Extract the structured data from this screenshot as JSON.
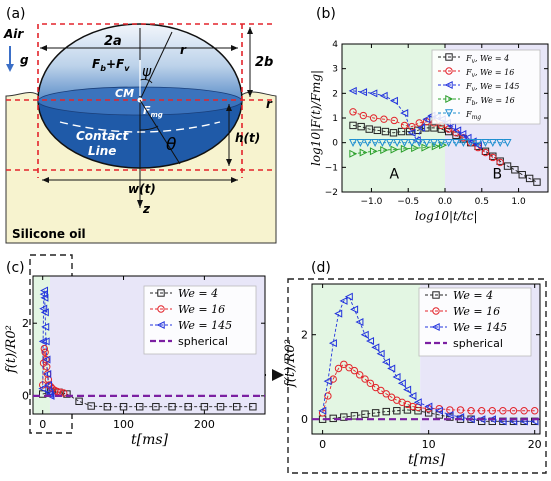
{
  "panel_labels": {
    "a": "(a)",
    "b": "(b)",
    "c": "(c)",
    "d": "(d)"
  },
  "schematic": {
    "air": "Air",
    "g": "g",
    "two_a": "2a",
    "two_b": "2b",
    "psi": "ψ",
    "r_upper": "r",
    "r_side": "r",
    "forces_up": "F",
    "forces_up_sub1": "b",
    "forces_up_plus": "+F",
    "forces_up_sub2": "v",
    "cm": "CM",
    "f_mg": "F",
    "f_mg_sub": "mg",
    "contact": "Contact",
    "line": "Line",
    "theta": "θ",
    "h_t": "h(t)",
    "w_t": "w(t)",
    "z": "z",
    "silicone_oil": "Silicone oil",
    "colors": {
      "oil": "#f7f3cf",
      "cap_top": "#e4eef8",
      "cap_mid": "#7fa6d0",
      "drop_body": "#1f5aa8",
      "guide": "#e3242b"
    }
  },
  "chart_data": [
    {
      "panel": "b",
      "type": "scatter",
      "xlabel": "log10|t/tc|",
      "ylabel": "log10|F(t)/Fmg|",
      "xlim": [
        -1.4,
        1.4
      ],
      "ylim": [
        -2,
        4
      ],
      "xticks": [
        -1.0,
        -0.5,
        0.0,
        0.5,
        1.0
      ],
      "yticks": [
        -2,
        -1,
        0,
        1,
        2,
        3,
        4
      ],
      "xtick_labels": [
        "−1.0",
        "−0.5",
        "0.0",
        "0.5",
        "1.0"
      ],
      "ytick_labels": [
        "−2",
        "−1",
        "0",
        "1",
        "2",
        "3",
        "4"
      ],
      "regions": [
        {
          "label": "A",
          "x": [
            -1.4,
            0.0
          ],
          "color": "#e3f6e3"
        },
        {
          "label": "B",
          "x": [
            0.0,
            1.4
          ],
          "color": "#e8e6f8"
        }
      ],
      "legend_position": "upper-right",
      "series": [
        {
          "name": "Fv, We = 4",
          "label_main": "F",
          "label_sub": "v",
          "label_rest": ", We = 4",
          "color": "#222222",
          "marker": "square",
          "x": [
            -1.25,
            -1.14,
            -1.03,
            -0.92,
            -0.81,
            -0.7,
            -0.59,
            -0.48,
            -0.37,
            -0.26,
            -0.15,
            -0.05,
            0.05,
            0.15,
            0.25,
            0.35,
            0.45,
            0.55,
            0.65,
            0.75,
            0.85,
            0.95,
            1.05,
            1.15,
            1.25
          ],
          "y": [
            0.7,
            0.65,
            0.55,
            0.5,
            0.45,
            0.4,
            0.45,
            0.45,
            0.5,
            0.6,
            0.6,
            0.55,
            0.45,
            0.3,
            0.15,
            0.0,
            -0.15,
            -0.35,
            -0.55,
            -0.75,
            -0.95,
            -1.1,
            -1.3,
            -1.45,
            -1.6
          ]
        },
        {
          "name": "Fv, We = 16",
          "label_main": "F",
          "label_sub": "v",
          "label_rest": ", We = 16",
          "color": "#e3242b",
          "marker": "circle",
          "x": [
            -1.25,
            -1.11,
            -0.97,
            -0.83,
            -0.69,
            -0.55,
            -0.45,
            -0.35,
            -0.25,
            -0.15,
            -0.05,
            0.05,
            0.15,
            0.25,
            0.35,
            0.45,
            0.55,
            0.65,
            0.75
          ],
          "y": [
            1.25,
            1.1,
            1.0,
            0.95,
            0.9,
            0.7,
            0.65,
            0.8,
            0.85,
            0.8,
            0.7,
            0.55,
            0.4,
            0.2,
            0.0,
            -0.2,
            -0.4,
            -0.6,
            -0.8
          ]
        },
        {
          "name": "Fv, We = 145",
          "label_main": "F",
          "label_sub": "v",
          "label_rest": ", We = 145",
          "color": "#2233dd",
          "marker": "triangle-left",
          "x": [
            -1.25,
            -1.11,
            -0.97,
            -0.83,
            -0.69,
            -0.55,
            -0.45,
            -0.38,
            -0.32,
            -0.25,
            -0.18,
            -0.11,
            -0.04,
            0.03,
            0.1,
            0.17,
            0.24,
            0.31,
            0.38,
            0.45
          ],
          "y": [
            2.1,
            2.05,
            2.0,
            1.9,
            1.7,
            1.2,
            0.4,
            0.1,
            0.6,
            0.95,
            1.1,
            1.05,
            0.95,
            0.8,
            0.65,
            0.5,
            0.35,
            0.2,
            0.05,
            -0.1
          ]
        },
        {
          "name": "Fb, We = 16",
          "label_main": "F",
          "label_sub": "b",
          "label_rest": ", We = 16",
          "color": "#2ca02c",
          "marker": "triangle-right",
          "x": [
            -1.25,
            -1.11,
            -0.97,
            -0.83,
            -0.69,
            -0.55,
            -0.41,
            -0.27,
            -0.13,
            -0.03
          ],
          "y": [
            -0.45,
            -0.4,
            -0.35,
            -0.3,
            -0.28,
            -0.25,
            -0.22,
            -0.2,
            -0.15,
            -0.1
          ]
        },
        {
          "name": "Fmg",
          "label_main": "F",
          "label_sub": "mg",
          "label_rest": "",
          "color": "#1f8fd0",
          "marker": "triangle-down",
          "x": [
            -1.25,
            -1.15,
            -1.05,
            -0.95,
            -0.85,
            -0.75,
            -0.65,
            -0.55,
            -0.45,
            -0.35,
            -0.25,
            -0.15,
            -0.05,
            0.05,
            0.15,
            0.25,
            0.35,
            0.45,
            0.55,
            0.65,
            0.75,
            0.85
          ],
          "y": [
            0,
            0,
            0,
            0,
            0,
            0,
            0,
            0,
            0,
            0,
            0,
            0,
            0,
            0,
            0,
            0,
            0,
            0,
            0,
            0,
            0,
            0
          ]
        }
      ]
    },
    {
      "panel": "c",
      "type": "line",
      "xlabel": "t[ms]",
      "ylabel": "f(t)/R0²",
      "xlim": [
        -12,
        275
      ],
      "ylim": [
        -0.5,
        3.3
      ],
      "xticks": [
        0,
        100,
        200
      ],
      "yticks": [
        0,
        2
      ],
      "xtick_labels": [
        "0",
        "100",
        "200"
      ],
      "ytick_labels": [
        "0",
        "2"
      ],
      "regions": [
        {
          "x": [
            -12,
            9
          ],
          "color": "#e3f6e3"
        },
        {
          "x": [
            9,
            275
          ],
          "color": "#e8e6f8"
        }
      ],
      "legend_position": "upper-right",
      "series": [
        {
          "name": "We = 4",
          "color": "#222222",
          "marker": "square",
          "x": [
            0,
            10,
            20,
            30,
            45,
            60,
            80,
            100,
            120,
            140,
            160,
            180,
            200,
            220,
            240,
            260
          ],
          "y": [
            0.05,
            0.12,
            0.1,
            0.05,
            -0.15,
            -0.28,
            -0.3,
            -0.3,
            -0.3,
            -0.3,
            -0.3,
            -0.3,
            -0.3,
            -0.3,
            -0.3,
            -0.3
          ]
        },
        {
          "name": "We = 16",
          "color": "#e3242b",
          "marker": "circle",
          "x": [
            0,
            1,
            2,
            3,
            4,
            5,
            6,
            7,
            8,
            10,
            12,
            15,
            18,
            22,
            26
          ],
          "y": [
            0.3,
            0.9,
            1.3,
            1.2,
            1.0,
            0.8,
            0.6,
            0.45,
            0.3,
            0.25,
            0.2,
            0.15,
            0.12,
            0.1,
            0.08
          ]
        },
        {
          "name": "We = 145",
          "color": "#2233dd",
          "marker": "triangle-left",
          "x": [
            0,
            0.5,
            1,
            1.5,
            2,
            2.5,
            3,
            3.5,
            4,
            5,
            6,
            7,
            8,
            9,
            10
          ],
          "y": [
            0.2,
            1.5,
            2.4,
            2.8,
            2.9,
            2.7,
            2.3,
            1.9,
            1.5,
            1.0,
            0.6,
            0.3,
            0.1,
            0.05,
            0.0
          ]
        },
        {
          "name": "spherical",
          "color": "#7b1fa2",
          "marker": "none",
          "dashed": true,
          "x": [
            -12,
            275
          ],
          "y": [
            0,
            0
          ]
        }
      ]
    },
    {
      "panel": "d",
      "type": "line",
      "xlabel": "t[ms]",
      "ylabel": "f(t)/R0²",
      "xlim": [
        -1,
        20.5
      ],
      "ylim": [
        -0.35,
        3.2
      ],
      "xticks": [
        0,
        10,
        20
      ],
      "yticks": [
        0,
        2
      ],
      "xtick_labels": [
        "0",
        "10",
        "20"
      ],
      "ytick_labels": [
        "0",
        "2"
      ],
      "regions": [
        {
          "x": [
            -1,
            9.2
          ],
          "color": "#e3f6e3"
        },
        {
          "x": [
            9.2,
            20.5
          ],
          "color": "#e8e6f8"
        }
      ],
      "legend_position": "upper-right",
      "series": [
        {
          "name": "We = 4",
          "color": "#222222",
          "marker": "square",
          "x": [
            0,
            1,
            2,
            3,
            4,
            5,
            6,
            7,
            8,
            9,
            10,
            11,
            12,
            13,
            14,
            15,
            16,
            17,
            18,
            19,
            20
          ],
          "y": [
            0.0,
            0.02,
            0.05,
            0.08,
            0.12,
            0.15,
            0.18,
            0.2,
            0.22,
            0.2,
            0.15,
            0.1,
            0.05,
            0.0,
            0.0,
            -0.05,
            -0.05,
            -0.05,
            -0.05,
            -0.05,
            -0.05
          ]
        },
        {
          "name": "We = 16",
          "color": "#e3242b",
          "marker": "circle",
          "x": [
            0,
            0.5,
            1,
            1.5,
            2,
            2.5,
            3,
            3.5,
            4,
            4.5,
            5,
            5.5,
            6,
            6.5,
            7,
            7.5,
            8,
            8.5,
            9,
            10,
            11,
            12,
            13,
            14,
            15,
            16,
            17,
            18,
            19,
            20
          ],
          "y": [
            0.15,
            0.55,
            0.95,
            1.2,
            1.3,
            1.22,
            1.15,
            1.05,
            0.95,
            0.85,
            0.75,
            0.68,
            0.6,
            0.52,
            0.45,
            0.4,
            0.35,
            0.3,
            0.28,
            0.25,
            0.25,
            0.22,
            0.22,
            0.2,
            0.2,
            0.2,
            0.2,
            0.2,
            0.2,
            0.2
          ]
        },
        {
          "name": "We = 145",
          "color": "#2233dd",
          "marker": "triangle-left",
          "x": [
            0,
            0.5,
            1,
            1.5,
            2,
            2.5,
            3,
            3.5,
            4,
            4.5,
            5,
            5.5,
            6,
            6.5,
            7,
            7.5,
            8,
            8.5,
            9,
            10,
            11,
            12,
            13,
            14,
            15,
            16,
            17,
            18,
            19,
            20
          ],
          "y": [
            0.2,
            0.9,
            1.8,
            2.5,
            2.8,
            2.9,
            2.6,
            2.3,
            2.0,
            1.85,
            1.7,
            1.55,
            1.35,
            1.2,
            1.0,
            0.85,
            0.7,
            0.55,
            0.4,
            0.3,
            0.2,
            0.1,
            0.05,
            0.0,
            0.0,
            0.0,
            -0.05,
            -0.05,
            -0.05,
            -0.05
          ]
        },
        {
          "name": "spherical",
          "color": "#7b1fa2",
          "marker": "none",
          "dashed": true,
          "x": [
            -1,
            20.5
          ],
          "y": [
            0,
            0
          ]
        }
      ]
    }
  ]
}
